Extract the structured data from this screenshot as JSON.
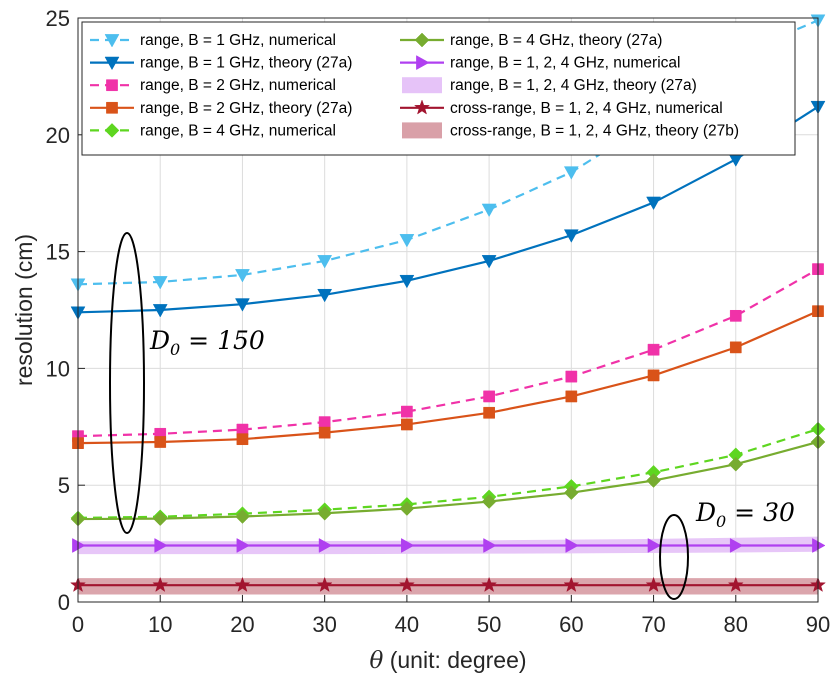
{
  "chart_data": {
    "type": "line",
    "xlabel_theta": "θ",
    "xlabel_rest": " (unit: degree)",
    "ylabel": "resolution (cm)",
    "xlim": [
      0,
      90
    ],
    "ylim": [
      0,
      25
    ],
    "xticks": [
      0,
      10,
      20,
      30,
      40,
      50,
      60,
      70,
      80,
      90
    ],
    "yticks": [
      0,
      5,
      10,
      15,
      20,
      25
    ],
    "grid": true,
    "legend_placement": "top",
    "x": [
      0,
      10,
      20,
      30,
      40,
      50,
      60,
      70,
      80,
      90
    ],
    "series": [
      {
        "name": "range, B = 1 GHz, numerical",
        "color": "#4DBEEE",
        "dash": true,
        "marker": "triangle-down",
        "values": [
          13.6,
          13.7,
          14.0,
          14.6,
          15.5,
          16.8,
          18.4,
          20.6,
          23.4,
          24.9
        ]
      },
      {
        "name": "range, B = 1 GHz, theory (27a)",
        "color": "#0072BD",
        "dash": false,
        "marker": "triangle-down",
        "values": [
          12.4,
          12.5,
          12.75,
          13.15,
          13.75,
          14.6,
          15.7,
          17.1,
          18.95,
          21.2
        ]
      },
      {
        "name": "range, B = 2 GHz, numerical",
        "color": "#F032A8",
        "dash": true,
        "marker": "square",
        "values": [
          7.1,
          7.2,
          7.38,
          7.7,
          8.15,
          8.8,
          9.65,
          10.8,
          12.25,
          14.25
        ]
      },
      {
        "name": "range, B = 2 GHz, theory (27a)",
        "color": "#D95319",
        "dash": false,
        "marker": "square",
        "values": [
          6.8,
          6.85,
          6.97,
          7.25,
          7.6,
          8.1,
          8.8,
          9.7,
          10.9,
          12.45
        ]
      },
      {
        "name": "range, B = 4 GHz, numerical",
        "color": "#5ED620",
        "dash": true,
        "marker": "diamond",
        "values": [
          3.6,
          3.65,
          3.78,
          3.95,
          4.18,
          4.5,
          4.95,
          5.55,
          6.3,
          7.4
        ]
      },
      {
        "name": "range, B = 4 GHz, theory (27a)",
        "color": "#77AC30",
        "dash": false,
        "marker": "diamond",
        "values": [
          3.55,
          3.57,
          3.66,
          3.8,
          4.0,
          4.3,
          4.68,
          5.2,
          5.9,
          6.85
        ]
      },
      {
        "name": "range, B = 1, 2, 4 GHz, numerical",
        "color": "#B040F0",
        "dash": false,
        "marker": "triangle-right",
        "values": [
          2.42,
          2.42,
          2.42,
          2.42,
          2.42,
          2.42,
          2.42,
          2.42,
          2.42,
          2.42
        ]
      },
      {
        "name": "range, B = 1, 2, 4 GHz, theory (27a)",
        "color": "#E6C3F8",
        "type": "band",
        "lower": [
          2.05,
          2.05,
          2.05,
          2.05,
          2.06,
          2.07,
          2.08,
          2.1,
          2.12,
          2.15
        ],
        "upper": [
          2.6,
          2.6,
          2.6,
          2.61,
          2.62,
          2.64,
          2.67,
          2.7,
          2.75,
          2.8
        ]
      },
      {
        "name": "cross-range, B = 1, 2, 4 GHz, numerical",
        "color": "#A2142F",
        "dash": false,
        "marker": "star",
        "values": [
          0.72,
          0.72,
          0.72,
          0.72,
          0.72,
          0.72,
          0.72,
          0.72,
          0.72,
          0.72
        ]
      },
      {
        "name": "cross-range, B = 1, 2, 4 GHz, theory (27b)",
        "color": "#D9A0A8",
        "type": "band",
        "lower": [
          0.32,
          0.32,
          0.32,
          0.32,
          0.32,
          0.32,
          0.32,
          0.32,
          0.32,
          0.32
        ],
        "upper": [
          1.02,
          1.02,
          1.02,
          1.02,
          1.02,
          1.02,
          1.02,
          1.02,
          1.02,
          1.02
        ]
      }
    ],
    "annotations": [
      {
        "d_symbol": "D",
        "subscript": "0",
        "equals": " = ",
        "value": "150"
      },
      {
        "d_symbol": "D",
        "subscript": "0",
        "equals": " = ",
        "value": "30"
      }
    ]
  }
}
